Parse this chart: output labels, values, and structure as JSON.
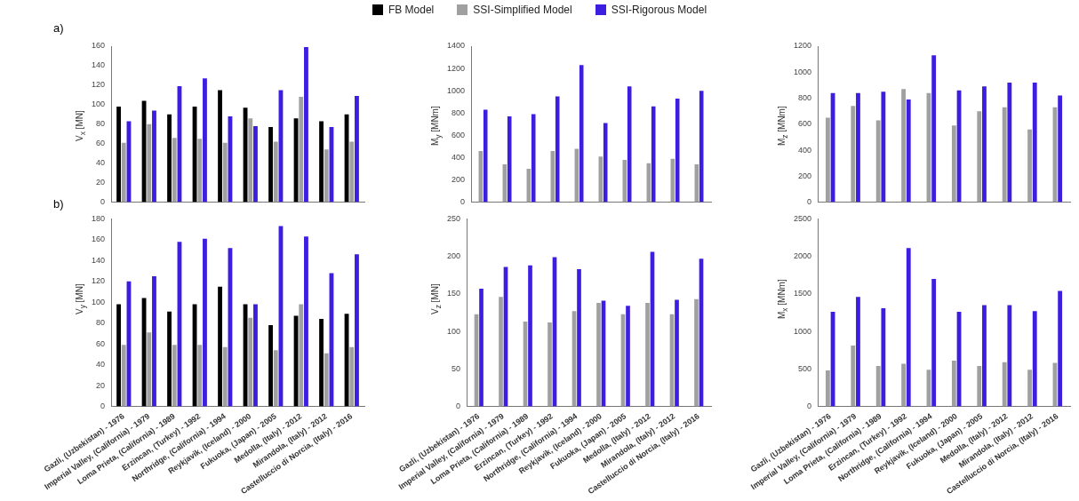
{
  "chart_data": [
    {
      "type": "bar",
      "annotations": [
        "a)"
      ],
      "ylabel": "V$_{x}$ [MN]",
      "legend": "top",
      "tick_labels": "y",
      "grid": false,
      "categories": [
        null,
        null,
        null,
        null,
        null,
        null,
        null,
        null,
        null,
        null
      ],
      "ylim": [
        0,
        160
      ],
      "yticks": [
        0,
        20,
        40,
        60,
        80,
        100,
        120,
        140,
        160
      ],
      "series": [
        {
          "name": "FB Model",
          "color": "#000000",
          "values": [
            98,
            104,
            90,
            98,
            115,
            97,
            77,
            86,
            83,
            90
          ]
        },
        {
          "name": "SSI-Simplified Model",
          "color": "#a0a0a0",
          "values": [
            61,
            80,
            66,
            65,
            61,
            86,
            62,
            108,
            54,
            62
          ]
        },
        {
          "name": "SSI-Rigorous Model",
          "color": "#3c1ee0",
          "values": [
            83,
            94,
            119,
            127,
            88,
            78,
            115,
            159,
            77,
            109
          ]
        }
      ]
    },
    {
      "type": "bar",
      "ylabel": "M$_{y}$ [MNm]",
      "tick_labels": "y",
      "grid": false,
      "categories": [
        null,
        null,
        null,
        null,
        null,
        null,
        null,
        null,
        null,
        null
      ],
      "ylim": [
        0,
        1400
      ],
      "yticks": [
        0,
        200,
        400,
        600,
        800,
        1000,
        1200,
        1400
      ],
      "series": [
        {
          "color": "#a0a0a0",
          "values": [
            460,
            340,
            300,
            460,
            480,
            410,
            380,
            350,
            390,
            340
          ]
        },
        {
          "color": "#3c1ee0",
          "values": [
            830,
            770,
            790,
            950,
            1230,
            710,
            1040,
            860,
            930,
            1000
          ]
        }
      ]
    },
    {
      "type": "bar",
      "ylabel": "M$_{z}$ [MNm]",
      "tick_labels": "y",
      "grid": false,
      "categories": [
        null,
        null,
        null,
        null,
        null,
        null,
        null,
        null,
        null,
        null
      ],
      "ylim": [
        0,
        1200
      ],
      "yticks": [
        0,
        200,
        400,
        600,
        800,
        1000,
        1200
      ],
      "series": [
        {
          "color": "#a0a0a0",
          "values": [
            650,
            740,
            630,
            870,
            840,
            590,
            700,
            730,
            560,
            730
          ]
        },
        {
          "color": "#3c1ee0",
          "values": [
            840,
            840,
            850,
            790,
            1130,
            860,
            890,
            920,
            920,
            820
          ]
        }
      ]
    },
    {
      "type": "bar",
      "annotations": [
        "b)"
      ],
      "ylabel": "V$_{y}$ [MN]",
      "grid": false,
      "categories": [
        "Gazli, (Uzbekistan) - 1976",
        "Imperial Valley, (California) - 1979",
        "Loma Prieta, (California) - 1989",
        "Erzincan, (Turkey) - 1992",
        "Northridge, (California) - 1994",
        "Reykjavik, (Iceland) - 2000",
        "Fukuoka, (Japan) - 2005",
        "Medolla, (Italy) - 2012",
        "Mirandola, (Italy) - 2012",
        "Castelluccio di Norcia, (Italy) - 2016"
      ],
      "ylim": [
        0,
        180
      ],
      "yticks": [
        0,
        20,
        40,
        60,
        80,
        100,
        120,
        140,
        160,
        180
      ],
      "series": [
        {
          "color": "#000000",
          "values": [
            98,
            104,
            91,
            98,
            115,
            98,
            78,
            87,
            84,
            89
          ]
        },
        {
          "color": "#a0a0a0",
          "values": [
            59,
            71,
            59,
            59,
            57,
            85,
            54,
            98,
            51,
            57
          ]
        },
        {
          "color": "#3c1ee0",
          "values": [
            120,
            125,
            158,
            161,
            152,
            98,
            173,
            163,
            128,
            146
          ]
        }
      ]
    },
    {
      "type": "bar",
      "ylabel": "V$_{z}$ [MN]",
      "grid": false,
      "categories": [
        "Gazli, (Uzbekistan) - 1976",
        "Imperial Valley, (California) - 1979",
        "Loma Prieta, (California) - 1989",
        "Erzincan, (Turkey) - 1992",
        "Northridge, (California) - 1994",
        "Reykjavik, (Iceland) - 2000",
        "Fukuoka, (Japan) - 2005",
        "Medolla, (Italy) - 2012",
        "Mirandola, (Italy) - 2012",
        "Castelluccio di Norcia, (Italy) - 2016"
      ],
      "ylim": [
        0,
        250
      ],
      "yticks": [
        0,
        50,
        100,
        150,
        200,
        250
      ],
      "series": [
        {
          "color": "#a0a0a0",
          "values": [
            123,
            146,
            113,
            112,
            127,
            138,
            123,
            138,
            123,
            143
          ]
        },
        {
          "color": "#3c1ee0",
          "values": [
            157,
            186,
            188,
            199,
            183,
            141,
            134,
            206,
            142,
            197
          ]
        }
      ]
    },
    {
      "type": "bar",
      "ylabel": "M$_{x}$ [MNm]",
      "grid": false,
      "categories": [
        "Gazli, (Uzbekistan) - 1976",
        "Imperial Valley, (California) - 1979",
        "Loma Prieta, (California) - 1989",
        "Erzincan, (Turkey) - 1992",
        "Northridge, (California) - 1994",
        "Reykjavik, (Iceland) - 2000",
        "Fukuoka, (Japan) - 2005",
        "Medolla, (Italy) - 2012",
        "Mirandola, (Italy) - 2012",
        "Castelluccio di Norcia, (Italy) - 2016"
      ],
      "ylim": [
        0,
        2500
      ],
      "yticks": [
        0,
        500,
        1000,
        1500,
        2000,
        2500
      ],
      "series": [
        {
          "color": "#a0a0a0",
          "values": [
            480,
            810,
            540,
            570,
            490,
            610,
            540,
            590,
            490,
            580
          ]
        },
        {
          "color": "#3c1ee0",
          "values": [
            1260,
            1460,
            1310,
            2110,
            1700,
            1260,
            1350,
            1350,
            1270,
            1540
          ]
        }
      ]
    }
  ]
}
